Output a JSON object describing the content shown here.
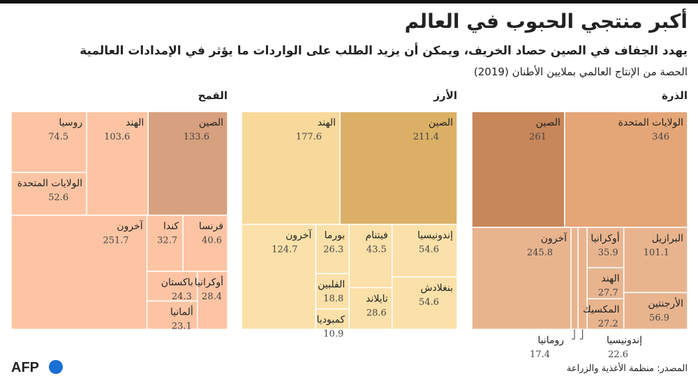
{
  "header": {
    "title": "أكبر منتجي الحبوب في العالم",
    "subtitle": "يهدد الجفاف في الصين حصاد الخريف، ويمكن أن يزيد الطلب على الواردات ما يؤثر في الإمدادات العالمية",
    "note": "الحصة من الإنتاج العالمي بملايين الأطنان (2019)"
  },
  "chart_data": [
    {
      "type": "treemap",
      "title": "الذرة",
      "categories": [
        "الولايات المتحدة",
        "الصين",
        "آخرون",
        "البرازيل",
        "الأرجنتين",
        "أوكرانيا",
        "الهند",
        "المكسيك",
        "إندونيسيا",
        "رومانيا"
      ],
      "values": [
        346,
        261,
        245.8,
        101.1,
        56.9,
        35.9,
        27.7,
        27.2,
        22.6,
        17.4
      ],
      "colors": [
        "#e4a677",
        "#c8875a",
        "#e8b48e",
        "#e8b48e",
        "#e8b48e",
        "#e8b48e",
        "#e8b48e",
        "#e8b48e",
        "#e8b48e",
        "#e8b48e"
      ]
    },
    {
      "type": "treemap",
      "title": "الأرز",
      "categories": [
        "الصين",
        "الهند",
        "آخرون",
        "إندونيسيا",
        "بنغلادش",
        "فيتنام",
        "تايلاند",
        "بورما",
        "الفلبين",
        "كمبوديا"
      ],
      "values": [
        211.4,
        177.6,
        124.7,
        54.6,
        54.6,
        43.5,
        28.6,
        26.3,
        18.8,
        10.9
      ],
      "colors": [
        "#dbb066",
        "#f8d99b",
        "#fbe0a9",
        "#fbe0a9",
        "#fbe0a9",
        "#fbe0a9",
        "#fbe0a9",
        "#fbe0a9",
        "#fbe0a9",
        "#fbe0a9"
      ]
    },
    {
      "type": "treemap",
      "title": "القمح",
      "categories": [
        "الصين",
        "الهند",
        "روسيا",
        "الولايات المتحدة",
        "آخرون",
        "فرنسا",
        "كندا",
        "أوكرانيا",
        "باكستان",
        "ألمانيا"
      ],
      "values": [
        133.6,
        103.6,
        74.5,
        52.6,
        251.7,
        40.6,
        32.7,
        28.4,
        24.3,
        23.1
      ],
      "colors": [
        "#d7a07e",
        "#fdc4a3",
        "#fdc4a3",
        "#fdc4a3",
        "#fdc4a3",
        "#fdc4a3",
        "#fdc4a3",
        "#fdc4a3",
        "#fdc4a3",
        "#fdc4a3"
      ]
    }
  ],
  "footer": {
    "source": "المصدر: منظمة الأغذية والزراعة",
    "logo": "AFP"
  }
}
